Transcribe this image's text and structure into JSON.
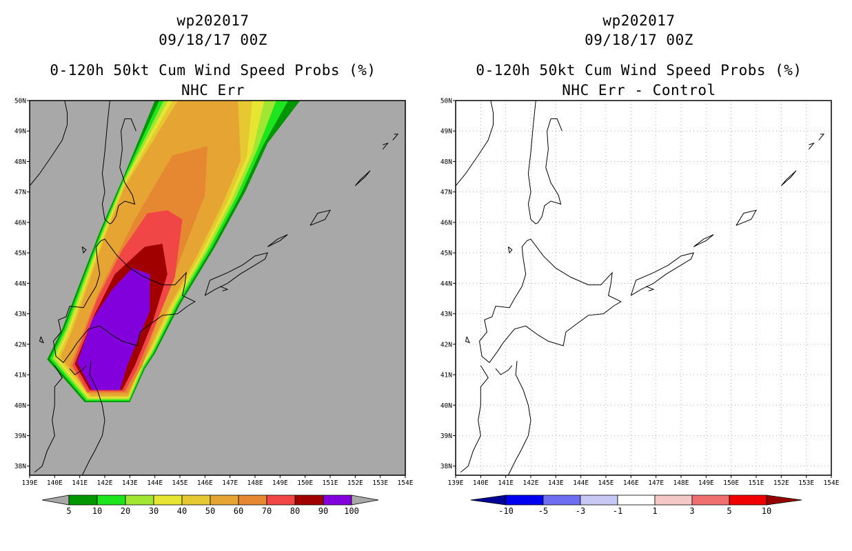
{
  "chart_data": [
    {
      "type": "heatmap",
      "title_lines": [
        "wp202017",
        "09/18/17 00Z",
        "0-120h 50kt Cum Wind Speed Probs (%)",
        "NHC Err"
      ],
      "x_ticks": [
        "139E",
        "140E",
        "141E",
        "142E",
        "143E",
        "144E",
        "145E",
        "146E",
        "147E",
        "148E",
        "149E",
        "150E",
        "151E",
        "152E",
        "153E",
        "154E"
      ],
      "y_ticks": [
        "50N",
        "49N",
        "48N",
        "47N",
        "46N",
        "45N",
        "44N",
        "43N",
        "42N",
        "41N",
        "40N",
        "39N",
        "38N"
      ],
      "xlim": [
        139,
        154
      ],
      "ylim": [
        37.7,
        50
      ],
      "background_color": "#a8a8a8",
      "grid": false,
      "colorbar": {
        "labels": [
          "5",
          "10",
          "20",
          "30",
          "40",
          "50",
          "60",
          "70",
          "80",
          "90",
          "100"
        ],
        "colors": [
          "#a8a8a8",
          "#009600",
          "#1ee61e",
          "#a0e632",
          "#e6e632",
          "#e6c832",
          "#e6a532",
          "#e68732",
          "#f04646",
          "#a00000",
          "#8200dc",
          "#a8a8a8"
        ]
      },
      "contour_levels": [
        5,
        10,
        20,
        30,
        40,
        50,
        60,
        70,
        80,
        90,
        100
      ]
    },
    {
      "type": "heatmap",
      "title_lines": [
        "wp202017",
        "09/18/17 00Z",
        "0-120h 50kt Cum Wind Speed Probs (%)",
        "NHC Err - Control"
      ],
      "x_ticks": [
        "139E",
        "140E",
        "141E",
        "142E",
        "143E",
        "144E",
        "145E",
        "146E",
        "147E",
        "148E",
        "149E",
        "150E",
        "151E",
        "152E",
        "153E",
        "154E"
      ],
      "y_ticks": [
        "50N",
        "49N",
        "48N",
        "47N",
        "46N",
        "45N",
        "44N",
        "43N",
        "42N",
        "41N",
        "40N",
        "39N",
        "38N"
      ],
      "xlim": [
        139,
        154
      ],
      "ylim": [
        37.7,
        50
      ],
      "background_color": "#ffffff",
      "grid": true,
      "colorbar": {
        "labels": [
          "-10",
          "-5",
          "-3",
          "-1",
          "1",
          "3",
          "5",
          "10"
        ],
        "colors": [
          "#000096",
          "#0000f0",
          "#6e6ef0",
          "#c8c8f5",
          "#ffffff",
          "#f5c8c8",
          "#f07070",
          "#f00000",
          "#960000"
        ]
      }
    }
  ]
}
